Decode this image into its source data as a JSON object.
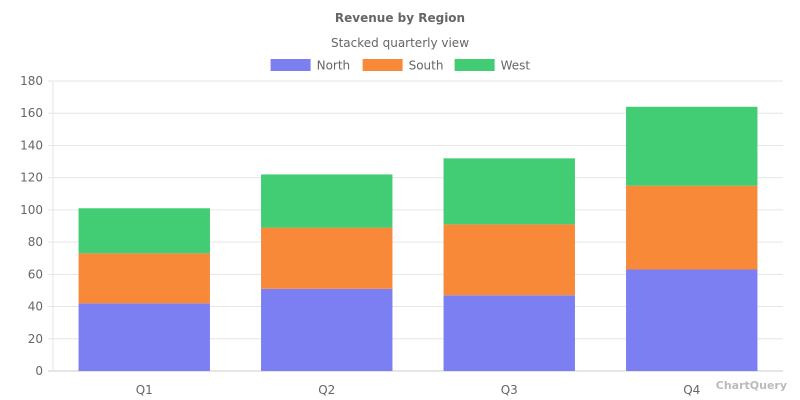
{
  "chart_data": {
    "type": "bar",
    "stacked": true,
    "title": "Revenue by Region",
    "subtitle": "Stacked quarterly view",
    "categories": [
      "Q1",
      "Q2",
      "Q3",
      "Q4"
    ],
    "series": [
      {
        "name": "North",
        "color": "#7b7ff2",
        "values": [
          42,
          51,
          47,
          63
        ]
      },
      {
        "name": "South",
        "color": "#f88939",
        "values": [
          31,
          38,
          44,
          52
        ]
      },
      {
        "name": "West",
        "color": "#42cc73",
        "values": [
          28,
          33,
          41,
          49
        ]
      }
    ],
    "ylim": [
      0,
      180
    ],
    "yticks": [
      0,
      20,
      40,
      60,
      80,
      100,
      120,
      140,
      160,
      180
    ],
    "grid": true,
    "legend_position": "top"
  },
  "watermark": "ChartQuery"
}
